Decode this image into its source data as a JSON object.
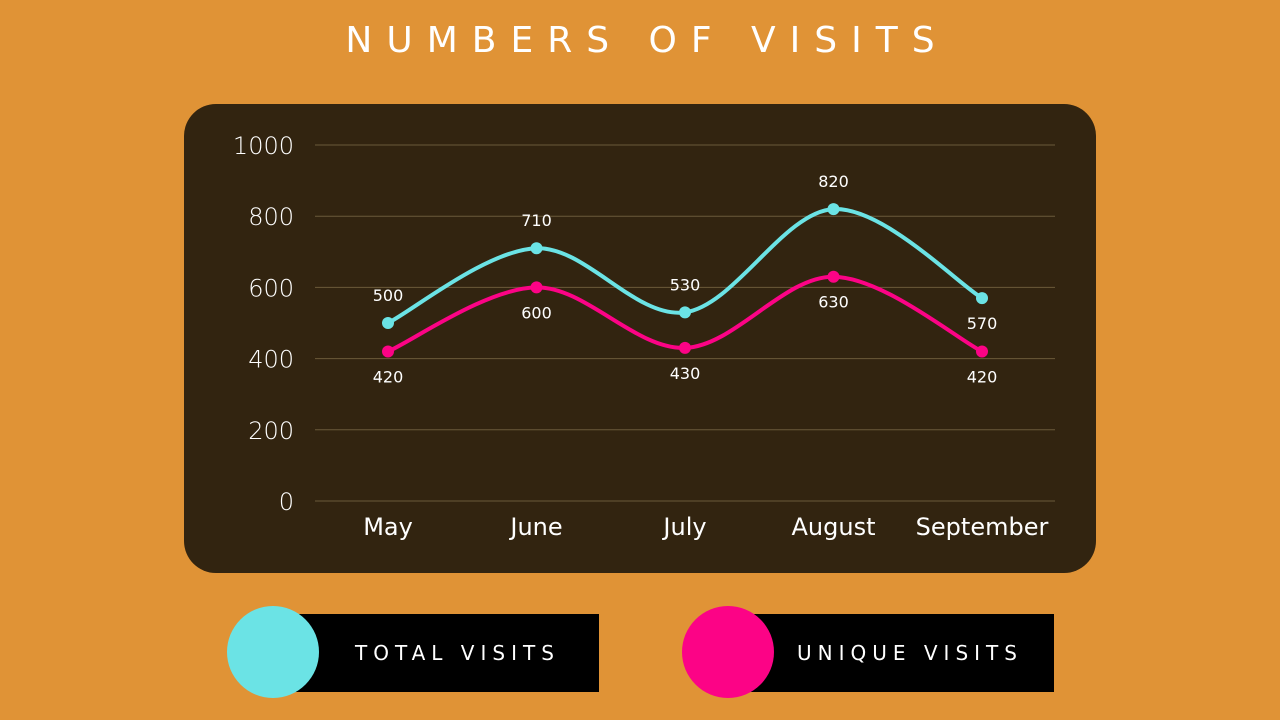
{
  "title": "NUMBERS OF VISITS",
  "colors": {
    "background": "#E09336",
    "panel": "#322410",
    "grid": "#6B5A3A",
    "text": "#FFFFFF",
    "total": "#6BE3E5",
    "unique": "#FC0386",
    "legend_bar": "#000000"
  },
  "legend": {
    "total_label": "TOTAL VISITS",
    "unique_label": "UNIQUE VISITS"
  },
  "chart_data": {
    "type": "line",
    "title": "NUMBERS OF VISITS",
    "xlabel": "",
    "ylabel": "",
    "categories": [
      "May",
      "June",
      "July",
      "August",
      "September"
    ],
    "ylim": [
      0,
      1000
    ],
    "yticks": [
      0,
      200,
      400,
      600,
      800,
      1000
    ],
    "grid": true,
    "smooth": true,
    "legend_position": "bottom",
    "series": [
      {
        "name": "TOTAL VISITS",
        "key": "total",
        "values": [
          500,
          710,
          530,
          820,
          570
        ],
        "label_position": [
          "above",
          "above",
          "above",
          "above",
          "below"
        ]
      },
      {
        "name": "UNIQUE VISITS",
        "key": "unique",
        "values": [
          420,
          600,
          430,
          630,
          420
        ],
        "label_position": [
          "below",
          "below",
          "below",
          "below",
          "below"
        ]
      }
    ]
  }
}
